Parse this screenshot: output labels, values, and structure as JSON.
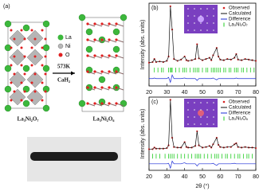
{
  "panel_a": {
    "label": "(a)",
    "legend": [
      "La",
      "Ni",
      "O"
    ],
    "reaction_temperature": "573K",
    "reagent": "CaH₂",
    "left_structure": "La₃Ni₂O₇",
    "right_structure": "La₃Ni₂O₆"
  },
  "chart_data": [
    {
      "type": "line",
      "panel_label": "(b)",
      "ylabel": "Intensity (abs. units)",
      "xlabel": "2θ (°)",
      "xlim": [
        20,
        80
      ],
      "xticks": [
        20,
        30,
        40,
        50,
        60,
        70,
        80
      ],
      "ylim": [
        -30,
        105
      ],
      "x": [
        20,
        22,
        23,
        24,
        26,
        28,
        30,
        31,
        32,
        33,
        34,
        36,
        38,
        40,
        41,
        42,
        44,
        46,
        47,
        48,
        50,
        52,
        54,
        55,
        56,
        58,
        59,
        60,
        62,
        64,
        66,
        68,
        69,
        70,
        72,
        74,
        76,
        78,
        80
      ],
      "series": [
        {
          "name": "Observed",
          "color": "#d62020",
          "values": [
            8,
            9,
            14,
            9,
            10,
            9,
            11,
            18,
            100,
            62,
            14,
            11,
            13,
            18,
            12,
            11,
            12,
            14,
            38,
            15,
            12,
            14,
            16,
            12,
            20,
            32,
            18,
            13,
            12,
            14,
            13,
            16,
            22,
            13,
            12,
            14,
            13,
            12,
            11
          ]
        },
        {
          "name": "Calculated",
          "color": "#111111",
          "values": [
            8,
            9,
            14,
            9,
            10,
            9,
            11,
            18,
            100,
            62,
            14,
            11,
            13,
            18,
            12,
            11,
            12,
            14,
            38,
            15,
            12,
            14,
            16,
            12,
            20,
            32,
            18,
            13,
            12,
            14,
            13,
            16,
            22,
            13,
            12,
            14,
            13,
            12,
            11
          ]
        },
        {
          "name": "Difference",
          "color": "#1a2bd6",
          "values": [
            -18,
            -18,
            -17,
            -18,
            -18,
            -18,
            -18,
            -16,
            -24,
            -12,
            -18,
            -18,
            -18,
            -17,
            -18,
            -18,
            -18,
            -18,
            -21,
            -18,
            -18,
            -18,
            -18,
            -18,
            -17,
            -20,
            -18,
            -18,
            -18,
            -18,
            -18,
            -18,
            -17,
            -18,
            -18,
            -18,
            -18,
            -18,
            -18
          ]
        }
      ],
      "bragg": {
        "name": "La₃Ni₂O₇",
        "color": "#22cc22",
        "positions": [
          23,
          25,
          27,
          28,
          31,
          32,
          32.5,
          33,
          35,
          37,
          39,
          40,
          41,
          43,
          45,
          46,
          47,
          48,
          50,
          52,
          53,
          55,
          56,
          57,
          58,
          59,
          60,
          62,
          63,
          65,
          66,
          68,
          69,
          70,
          72,
          73,
          75,
          77,
          79
        ]
      }
    },
    {
      "type": "line",
      "panel_label": "(c)",
      "ylabel": "Intensity (abs. units)",
      "xlabel": "2θ (°)",
      "xlim": [
        20,
        80
      ],
      "xticks": [
        20,
        30,
        40,
        50,
        60,
        70,
        80
      ],
      "ylim": [
        -30,
        105
      ],
      "x": [
        20,
        22,
        23,
        24,
        26,
        28,
        30,
        31,
        32,
        33,
        34,
        36,
        38,
        40,
        41,
        42,
        44,
        46,
        47,
        48,
        50,
        52,
        54,
        55,
        56,
        58,
        59,
        60,
        62,
        64,
        66,
        68,
        69,
        70,
        72,
        74,
        76,
        78,
        80
      ],
      "series": [
        {
          "name": "Observed",
          "color": "#d62020",
          "values": [
            9,
            9,
            12,
            10,
            10,
            10,
            11,
            16,
            100,
            30,
            13,
            12,
            12,
            22,
            13,
            12,
            12,
            15,
            42,
            16,
            12,
            13,
            15,
            12,
            18,
            30,
            17,
            13,
            12,
            13,
            13,
            18,
            20,
            13,
            12,
            13,
            12,
            12,
            11
          ]
        },
        {
          "name": "Calculated",
          "color": "#111111",
          "values": [
            9,
            9,
            12,
            10,
            10,
            10,
            11,
            16,
            100,
            30,
            13,
            12,
            12,
            22,
            13,
            12,
            12,
            15,
            42,
            16,
            12,
            13,
            15,
            12,
            18,
            30,
            17,
            13,
            12,
            13,
            13,
            18,
            20,
            13,
            12,
            13,
            12,
            12,
            11
          ]
        },
        {
          "name": "Difference",
          "color": "#1a2bd6",
          "values": [
            -18,
            -18,
            -18,
            -18,
            -18,
            -18,
            -18,
            -17,
            -26,
            -13,
            -18,
            -18,
            -18,
            -16,
            -18,
            -18,
            -18,
            -18,
            -22,
            -18,
            -18,
            -18,
            -18,
            -18,
            -17,
            -21,
            -18,
            -18,
            -18,
            -18,
            -18,
            -17,
            -18,
            -18,
            -18,
            -18,
            -18,
            -18,
            -18
          ]
        }
      ],
      "bragg": {
        "name": "La₃Ni₂O₆",
        "color": "#22cc22",
        "positions": [
          22,
          24,
          26,
          29,
          31,
          32,
          33,
          34,
          36,
          38,
          40,
          42,
          44,
          46,
          47,
          48,
          49,
          51,
          53,
          55,
          57,
          58,
          59,
          61,
          63,
          64,
          66,
          68,
          70,
          71,
          73,
          75,
          76,
          78
        ]
      }
    }
  ]
}
